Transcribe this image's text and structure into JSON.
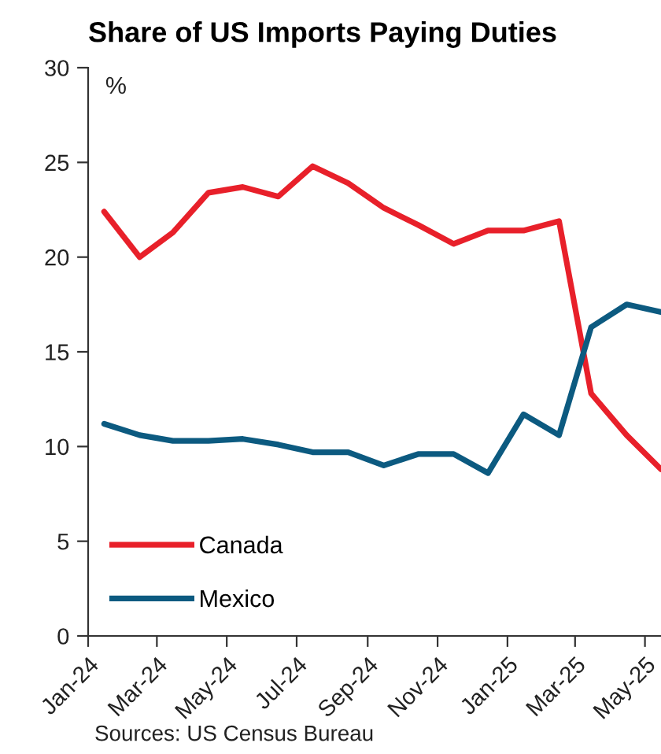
{
  "chart_data": {
    "type": "line",
    "title": "Share of US Imports Paying Duties",
    "ylabel": "%",
    "x": [
      "2024-01-15",
      "2024-02-15",
      "2024-03-15",
      "2024-04-15",
      "2024-05-15",
      "2024-06-15",
      "2024-07-15",
      "2024-08-15",
      "2024-09-15",
      "2024-10-15",
      "2024-11-15",
      "2024-12-15",
      "2025-01-15",
      "2025-02-15",
      "2025-03-15",
      "2025-04-15",
      "2025-05-15"
    ],
    "series": [
      {
        "name": "Canada",
        "color": "#e8202a",
        "values": [
          22.4,
          20.0,
          21.3,
          23.4,
          23.7,
          23.2,
          24.8,
          23.9,
          22.6,
          21.7,
          20.7,
          21.4,
          21.4,
          21.9,
          12.8,
          10.6,
          8.8
        ]
      },
      {
        "name": "Mexico",
        "color": "#0c5a80",
        "values": [
          11.2,
          10.6,
          10.3,
          10.3,
          10.4,
          10.1,
          9.7,
          9.7,
          9.0,
          9.6,
          9.6,
          8.6,
          11.7,
          10.6,
          16.3,
          17.5,
          17.1
        ]
      }
    ],
    "xlim": [
      "2024-01-01",
      "2025-05-15"
    ],
    "xticks": [
      {
        "value": "2024-01-01",
        "label": "Jan-24"
      },
      {
        "value": "2024-03-01",
        "label": "Mar-24"
      },
      {
        "value": "2024-05-01",
        "label": "May-24"
      },
      {
        "value": "2024-07-01",
        "label": "Jul-24"
      },
      {
        "value": "2024-09-01",
        "label": "Sep-24"
      },
      {
        "value": "2024-11-01",
        "label": "Nov-24"
      },
      {
        "value": "2025-01-01",
        "label": "Jan-25"
      },
      {
        "value": "2025-03-01",
        "label": "Mar-25"
      },
      {
        "value": "2025-05-01",
        "label": "May-25"
      }
    ],
    "ylim": [
      0,
      30
    ],
    "yticks": [
      0,
      5,
      10,
      15,
      20,
      25,
      30
    ],
    "grid": false,
    "legend": "bottom left",
    "line_style": "solid",
    "annotations": [
      "Sources: US Census Bureau"
    ]
  }
}
